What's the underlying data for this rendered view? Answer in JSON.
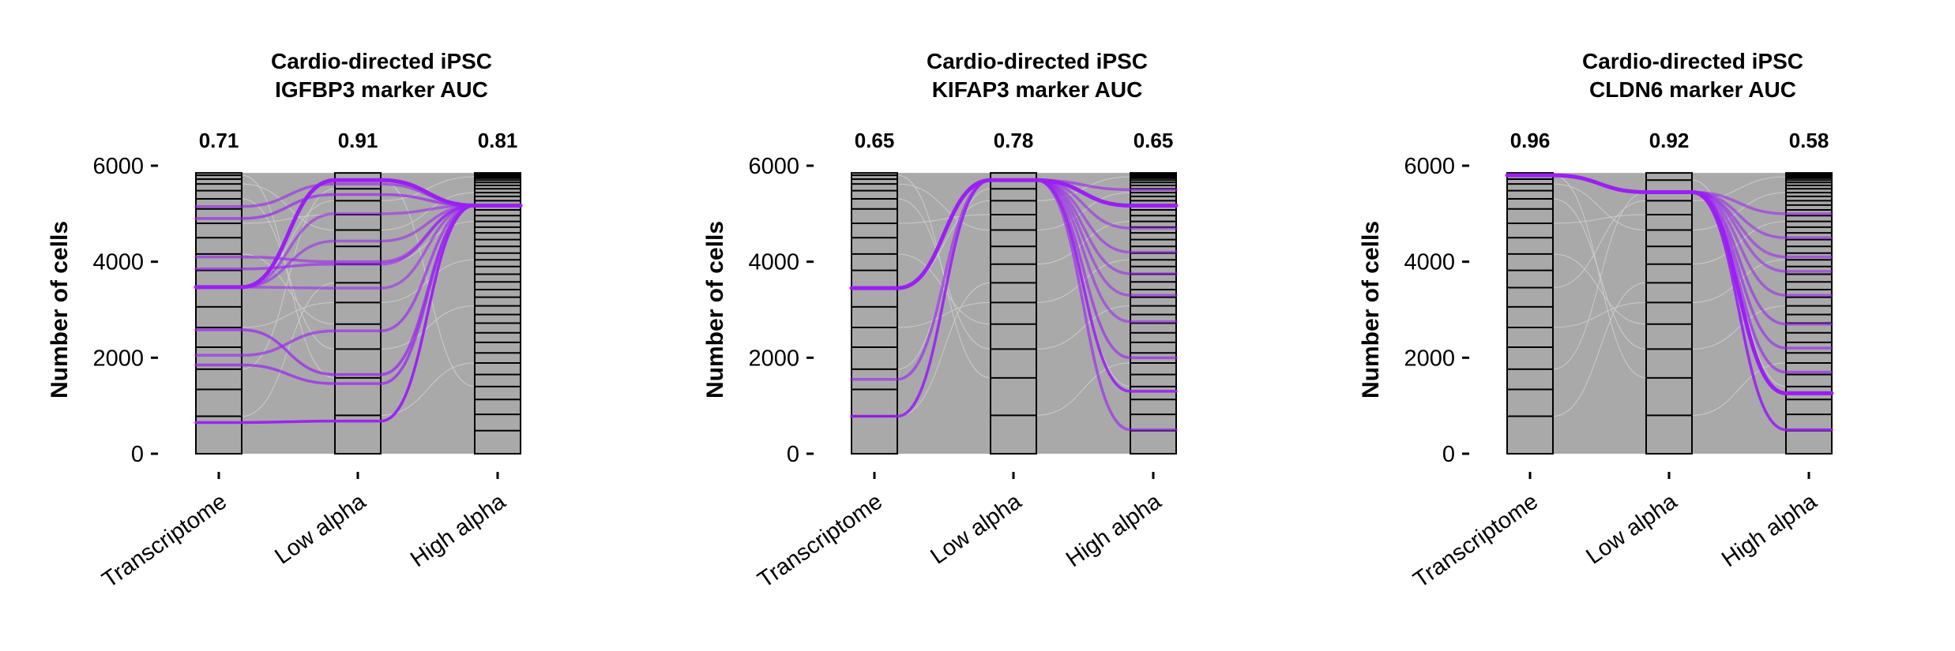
{
  "chart_data": [
    {
      "type": "alluvial",
      "title": "Cardio-directed iPSC",
      "subtitle": "IGFBP3 marker AUC",
      "ylabel": "Number of cells",
      "ylim": [
        0,
        6000
      ],
      "yticks": [
        0,
        2000,
        4000,
        6000
      ],
      "categories": [
        "Transcriptome",
        "Low alpha",
        "High alpha"
      ],
      "auc": [
        "0.71",
        "0.91",
        "0.81"
      ],
      "total_cells": 5850,
      "highlight_color": "#9b1ff5",
      "flow_color": "#a9a9a9",
      "strata_boundaries": [
        [
          780,
          1340,
          1760,
          2220,
          2630,
          3060,
          3460,
          3820,
          4160,
          4500,
          4800,
          5100,
          5310,
          5480,
          5620,
          5720,
          5800
        ],
        [
          800,
          1580,
          2180,
          2700,
          3150,
          3560,
          3950,
          4320,
          4660,
          4980,
          5270,
          5520,
          5700
        ],
        [
          480,
          820,
          1130,
          1400,
          1650,
          1890,
          2100,
          2320,
          2520,
          2720,
          2900,
          3080,
          3260,
          3420,
          3580,
          3740,
          3900,
          4040,
          4180,
          4320,
          4460,
          4600,
          4720,
          4840,
          4960,
          5080,
          5180,
          5270,
          5360,
          5440,
          5520,
          5590,
          5650,
          5700,
          5740,
          5770,
          5800,
          5825
        ]
      ],
      "highlight_paths": [
        {
          "values": [
            3470,
            5700,
            5170
          ],
          "strength": 1.0
        },
        {
          "values": [
            650,
            680,
            5170
          ],
          "strength": 0.95
        },
        {
          "values": [
            1850,
            1460,
            5170
          ],
          "strength": 0.6
        },
        {
          "values": [
            2580,
            1650,
            5170
          ],
          "strength": 0.6
        },
        {
          "values": [
            2050,
            2560,
            5170
          ],
          "strength": 0.5
        },
        {
          "values": [
            3850,
            3950,
            5170
          ],
          "strength": 0.5
        },
        {
          "values": [
            4100,
            4000,
            5170
          ],
          "strength": 0.45
        },
        {
          "values": [
            4900,
            5400,
            5170
          ],
          "strength": 0.55
        },
        {
          "values": [
            5150,
            5620,
            5170
          ],
          "strength": 0.45
        },
        {
          "values": [
            3470,
            3450,
            5170
          ],
          "strength": 0.4
        },
        {
          "values": [
            3470,
            4430,
            5170
          ],
          "strength": 0.4
        },
        {
          "values": [
            3470,
            5000,
            5170
          ],
          "strength": 0.4
        }
      ]
    },
    {
      "type": "alluvial",
      "title": "Cardio-directed iPSC",
      "subtitle": "KIFAP3 marker AUC",
      "ylabel": "Number of cells",
      "ylim": [
        0,
        6000
      ],
      "yticks": [
        0,
        2000,
        4000,
        6000
      ],
      "categories": [
        "Transcriptome",
        "Low alpha",
        "High alpha"
      ],
      "auc": [
        "0.65",
        "0.78",
        "0.65"
      ],
      "total_cells": 5850,
      "highlight_color": "#9b1ff5",
      "flow_color": "#a9a9a9",
      "strata_boundaries": [
        [
          780,
          1340,
          1760,
          2220,
          2630,
          3060,
          3460,
          3820,
          4160,
          4500,
          4800,
          5100,
          5310,
          5480,
          5620,
          5720,
          5800
        ],
        [
          800,
          1580,
          2180,
          2700,
          3150,
          3560,
          3950,
          4320,
          4660,
          4980,
          5270,
          5520,
          5700
        ],
        [
          480,
          820,
          1130,
          1400,
          1650,
          1890,
          2100,
          2320,
          2520,
          2720,
          2900,
          3080,
          3260,
          3420,
          3580,
          3740,
          3900,
          4040,
          4180,
          4320,
          4460,
          4600,
          4720,
          4840,
          4960,
          5080,
          5180,
          5270,
          5360,
          5440,
          5520,
          5590,
          5650,
          5700,
          5740,
          5770,
          5800,
          5825
        ]
      ],
      "highlight_paths": [
        {
          "values": [
            3450,
            5700,
            5170
          ],
          "strength": 1.0
        },
        {
          "values": [
            780,
            5700,
            1300
          ],
          "strength": 0.85
        },
        {
          "values": [
            1550,
            5700,
            500
          ],
          "strength": 0.5
        },
        {
          "values": [
            3450,
            5700,
            2000
          ],
          "strength": 0.5
        },
        {
          "values": [
            3450,
            5700,
            2750
          ],
          "strength": 0.4
        },
        {
          "values": [
            3450,
            5700,
            3300
          ],
          "strength": 0.4
        },
        {
          "values": [
            3450,
            5700,
            3750
          ],
          "strength": 0.4
        },
        {
          "values": [
            3450,
            5700,
            4200
          ],
          "strength": 0.4
        },
        {
          "values": [
            3450,
            5700,
            4700
          ],
          "strength": 0.4
        },
        {
          "values": [
            3450,
            5700,
            5500
          ],
          "strength": 0.45
        }
      ]
    },
    {
      "type": "alluvial",
      "title": "Cardio-directed iPSC",
      "subtitle": "CLDN6 marker AUC",
      "ylabel": "Number of cells",
      "ylim": [
        0,
        6000
      ],
      "yticks": [
        0,
        2000,
        4000,
        6000
      ],
      "categories": [
        "Transcriptome",
        "Low alpha",
        "High alpha"
      ],
      "auc": [
        "0.96",
        "0.92",
        "0.58"
      ],
      "total_cells": 5850,
      "highlight_color": "#9b1ff5",
      "flow_color": "#a9a9a9",
      "strata_boundaries": [
        [
          780,
          1340,
          1760,
          2220,
          2630,
          3060,
          3460,
          3820,
          4160,
          4500,
          4800,
          5100,
          5310,
          5480,
          5620,
          5720,
          5800
        ],
        [
          800,
          1580,
          2180,
          2700,
          3150,
          3560,
          3950,
          4320,
          4660,
          4980,
          5270,
          5450,
          5700
        ],
        [
          480,
          820,
          1130,
          1400,
          1650,
          1890,
          2100,
          2320,
          2520,
          2720,
          2900,
          3080,
          3260,
          3420,
          3580,
          3740,
          3900,
          4040,
          4180,
          4320,
          4460,
          4600,
          4720,
          4840,
          4960,
          5080,
          5180,
          5270,
          5360,
          5440,
          5520,
          5590,
          5650,
          5700,
          5740,
          5770,
          5800,
          5825
        ]
      ],
      "highlight_paths": [
        {
          "values": [
            5800,
            5450,
            1260
          ],
          "strength": 1.0
        },
        {
          "values": [
            5800,
            5450,
            500
          ],
          "strength": 0.85
        },
        {
          "values": [
            5800,
            5450,
            1700
          ],
          "strength": 0.5
        },
        {
          "values": [
            5800,
            5450,
            2200
          ],
          "strength": 0.45
        },
        {
          "values": [
            5800,
            5450,
            2700
          ],
          "strength": 0.45
        },
        {
          "values": [
            5800,
            5450,
            3300
          ],
          "strength": 0.4
        },
        {
          "values": [
            5800,
            5450,
            3800
          ],
          "strength": 0.4
        },
        {
          "values": [
            5800,
            5450,
            4100
          ],
          "strength": 0.4
        },
        {
          "values": [
            5800,
            5450,
            4500
          ],
          "strength": 0.4
        },
        {
          "values": [
            5800,
            5450,
            5000
          ],
          "strength": 0.4
        }
      ]
    }
  ]
}
